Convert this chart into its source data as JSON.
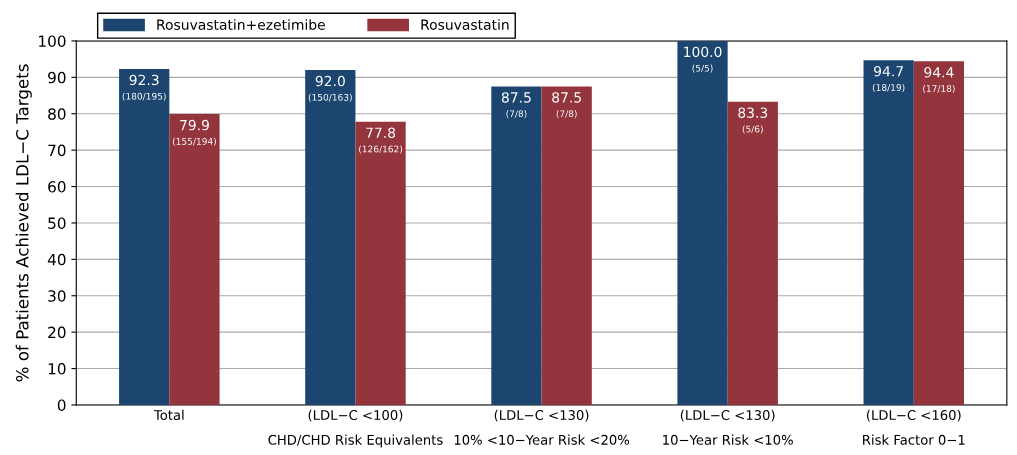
{
  "chart_data": {
    "type": "bar",
    "ylabel": "% of Patients Achieved LDL−C Targets",
    "categories": [
      "Total",
      "(LDL−C <100)\nCHD/CHD Risk Equivalents",
      "(LDL−C <130)\n10% <10−Year Risk <20%",
      "(LDL−C <130)\n10−Year Risk <10%",
      "(LDL−C <160)\nRisk Factor 0−1"
    ],
    "series": [
      {
        "name": "Rosuvastatin+ezetimibe",
        "color": "#1c4670",
        "values": [
          92.3,
          92.0,
          87.5,
          100.0,
          94.7
        ],
        "value_labels": [
          "92.3\n(180/195)",
          "92.0\n(150/163)",
          "87.5\n(7/8)",
          "100.0\n(5/5)",
          "94.7\n(18/19)"
        ]
      },
      {
        "name": "Rosuvastatin",
        "color": "#94343c",
        "values": [
          79.9,
          77.8,
          87.5,
          83.3,
          94.4
        ],
        "value_labels": [
          "79.9\n(155/194)",
          "77.8\n(126/162)",
          "87.5\n(7/8)",
          "83.3\n(5/6)",
          "94.4\n(17/18)"
        ]
      }
    ],
    "ylim": [
      0,
      100
    ],
    "yticks": [
      0,
      10,
      20,
      30,
      40,
      50,
      60,
      70,
      80,
      90,
      100
    ],
    "grid": "y",
    "legend": "top left"
  }
}
